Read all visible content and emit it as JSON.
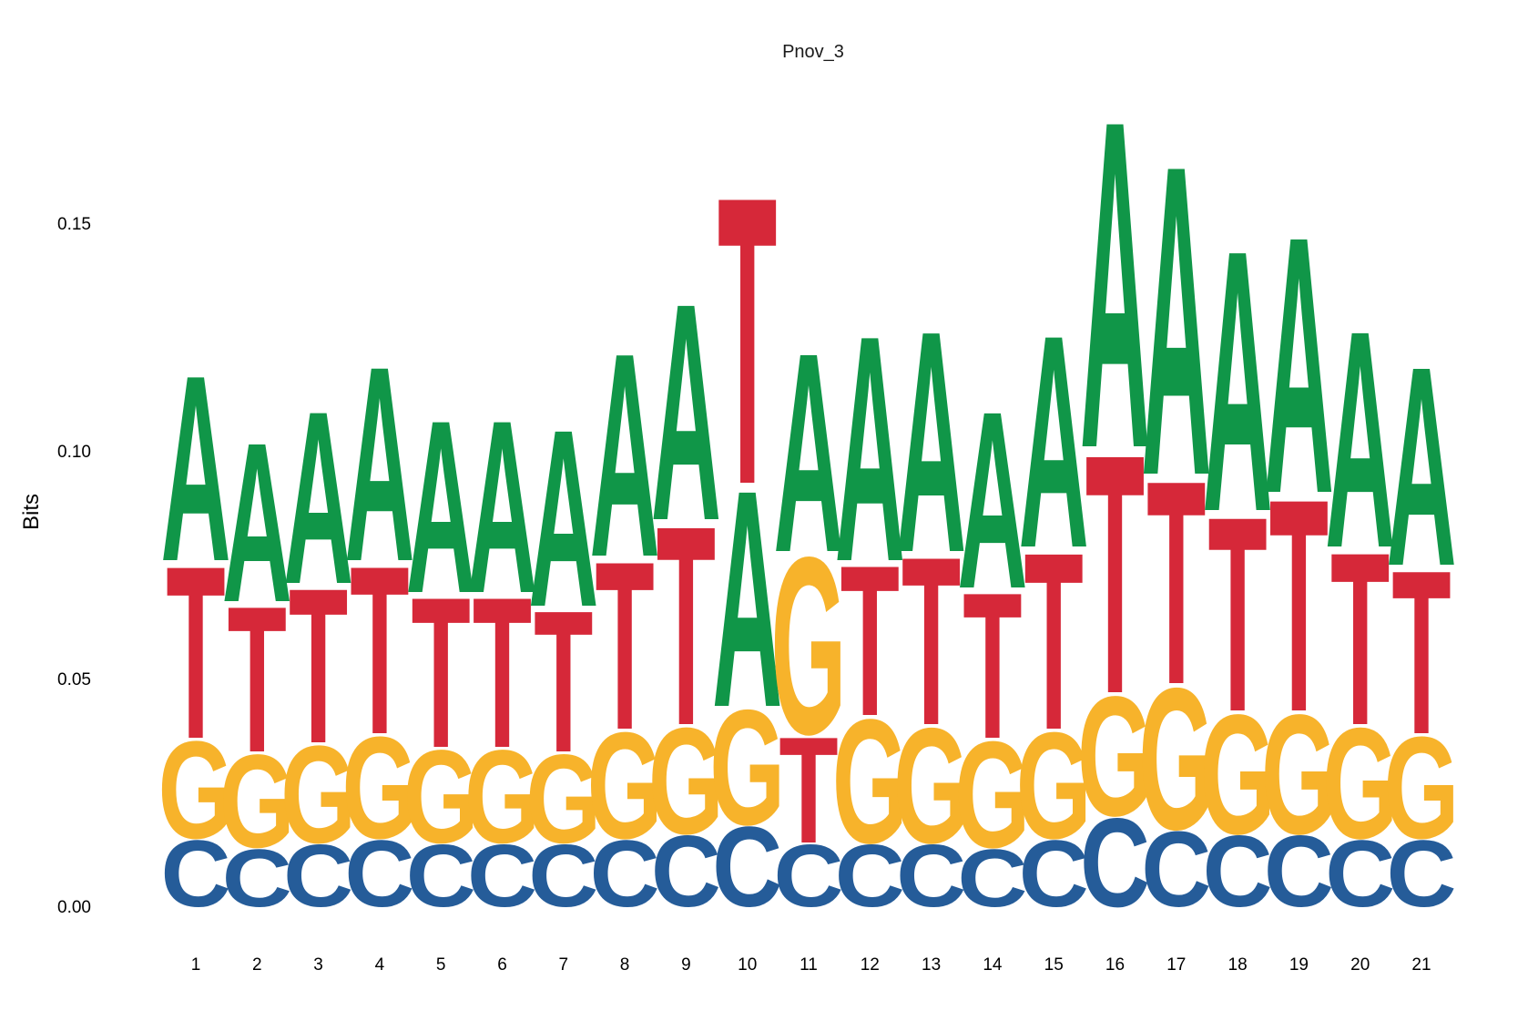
{
  "chart_data": {
    "type": "sequence-logo",
    "title": "Pnov_3",
    "ylabel": "Bits",
    "xlabel": "",
    "ylim": [
      0,
      0.195
    ],
    "yticks": [
      "0.00",
      "0.05",
      "0.10",
      "0.15"
    ],
    "ytick_values": [
      0,
      0.05,
      0.1,
      0.15
    ],
    "grid": false,
    "colors": {
      "A": "#109648",
      "C": "#255C99",
      "G": "#F7B32B",
      "T": "#D62839"
    },
    "positions": [
      "1",
      "2",
      "3",
      "4",
      "5",
      "6",
      "7",
      "8",
      "9",
      "10",
      "11",
      "12",
      "13",
      "14",
      "15",
      "16",
      "17",
      "18",
      "19",
      "20",
      "21"
    ],
    "stacks": [
      [
        {
          "l": "C",
          "h": 0.015
        },
        {
          "l": "G",
          "h": 0.022
        },
        {
          "l": "T",
          "h": 0.039
        },
        {
          "l": "A",
          "h": 0.042
        }
      ],
      [
        {
          "l": "C",
          "h": 0.013
        },
        {
          "l": "G",
          "h": 0.021
        },
        {
          "l": "T",
          "h": 0.033
        },
        {
          "l": "A",
          "h": 0.036
        }
      ],
      [
        {
          "l": "C",
          "h": 0.014
        },
        {
          "l": "G",
          "h": 0.022
        },
        {
          "l": "T",
          "h": 0.035
        },
        {
          "l": "A",
          "h": 0.039
        }
      ],
      [
        {
          "l": "C",
          "h": 0.015
        },
        {
          "l": "G",
          "h": 0.023
        },
        {
          "l": "T",
          "h": 0.038
        },
        {
          "l": "A",
          "h": 0.044
        }
      ],
      [
        {
          "l": "C",
          "h": 0.014
        },
        {
          "l": "G",
          "h": 0.021
        },
        {
          "l": "T",
          "h": 0.034
        },
        {
          "l": "A",
          "h": 0.039
        }
      ],
      [
        {
          "l": "C",
          "h": 0.014
        },
        {
          "l": "G",
          "h": 0.021
        },
        {
          "l": "T",
          "h": 0.034
        },
        {
          "l": "A",
          "h": 0.039
        }
      ],
      [
        {
          "l": "C",
          "h": 0.014
        },
        {
          "l": "G",
          "h": 0.02
        },
        {
          "l": "T",
          "h": 0.032
        },
        {
          "l": "A",
          "h": 0.04
        }
      ],
      [
        {
          "l": "C",
          "h": 0.015
        },
        {
          "l": "G",
          "h": 0.024
        },
        {
          "l": "T",
          "h": 0.038
        },
        {
          "l": "A",
          "h": 0.046
        }
      ],
      [
        {
          "l": "C",
          "h": 0.016
        },
        {
          "l": "G",
          "h": 0.024
        },
        {
          "l": "T",
          "h": 0.045
        },
        {
          "l": "A",
          "h": 0.049
        }
      ],
      [
        {
          "l": "C",
          "h": 0.018
        },
        {
          "l": "G",
          "h": 0.026
        },
        {
          "l": "A",
          "h": 0.049
        },
        {
          "l": "T",
          "h": 0.065
        }
      ],
      [
        {
          "l": "C",
          "h": 0.014
        },
        {
          "l": "T",
          "h": 0.024
        },
        {
          "l": "G",
          "h": 0.04
        },
        {
          "l": "A",
          "h": 0.045
        }
      ],
      [
        {
          "l": "C",
          "h": 0.014
        },
        {
          "l": "G",
          "h": 0.028
        },
        {
          "l": "T",
          "h": 0.034
        },
        {
          "l": "A",
          "h": 0.051
        }
      ],
      [
        {
          "l": "C",
          "h": 0.014
        },
        {
          "l": "G",
          "h": 0.026
        },
        {
          "l": "T",
          "h": 0.038
        },
        {
          "l": "A",
          "h": 0.05
        }
      ],
      [
        {
          "l": "C",
          "h": 0.013
        },
        {
          "l": "G",
          "h": 0.024
        },
        {
          "l": "T",
          "h": 0.033
        },
        {
          "l": "A",
          "h": 0.04
        }
      ],
      [
        {
          "l": "C",
          "h": 0.015
        },
        {
          "l": "G",
          "h": 0.024
        },
        {
          "l": "T",
          "h": 0.04
        },
        {
          "l": "A",
          "h": 0.048
        }
      ],
      [
        {
          "l": "C",
          "h": 0.02
        },
        {
          "l": "G",
          "h": 0.027
        },
        {
          "l": "T",
          "h": 0.054
        },
        {
          "l": "A",
          "h": 0.074
        }
      ],
      [
        {
          "l": "C",
          "h": 0.017
        },
        {
          "l": "G",
          "h": 0.032
        },
        {
          "l": "T",
          "h": 0.046
        },
        {
          "l": "A",
          "h": 0.07
        }
      ],
      [
        {
          "l": "C",
          "h": 0.016
        },
        {
          "l": "G",
          "h": 0.027
        },
        {
          "l": "T",
          "h": 0.044
        },
        {
          "l": "A",
          "h": 0.059
        }
      ],
      [
        {
          "l": "C",
          "h": 0.016
        },
        {
          "l": "G",
          "h": 0.027
        },
        {
          "l": "T",
          "h": 0.048
        },
        {
          "l": "A",
          "h": 0.058
        }
      ],
      [
        {
          "l": "C",
          "h": 0.015
        },
        {
          "l": "G",
          "h": 0.025
        },
        {
          "l": "T",
          "h": 0.039
        },
        {
          "l": "A",
          "h": 0.049
        }
      ],
      [
        {
          "l": "C",
          "h": 0.015
        },
        {
          "l": "G",
          "h": 0.023
        },
        {
          "l": "T",
          "h": 0.037
        },
        {
          "l": "A",
          "h": 0.045
        }
      ]
    ]
  }
}
